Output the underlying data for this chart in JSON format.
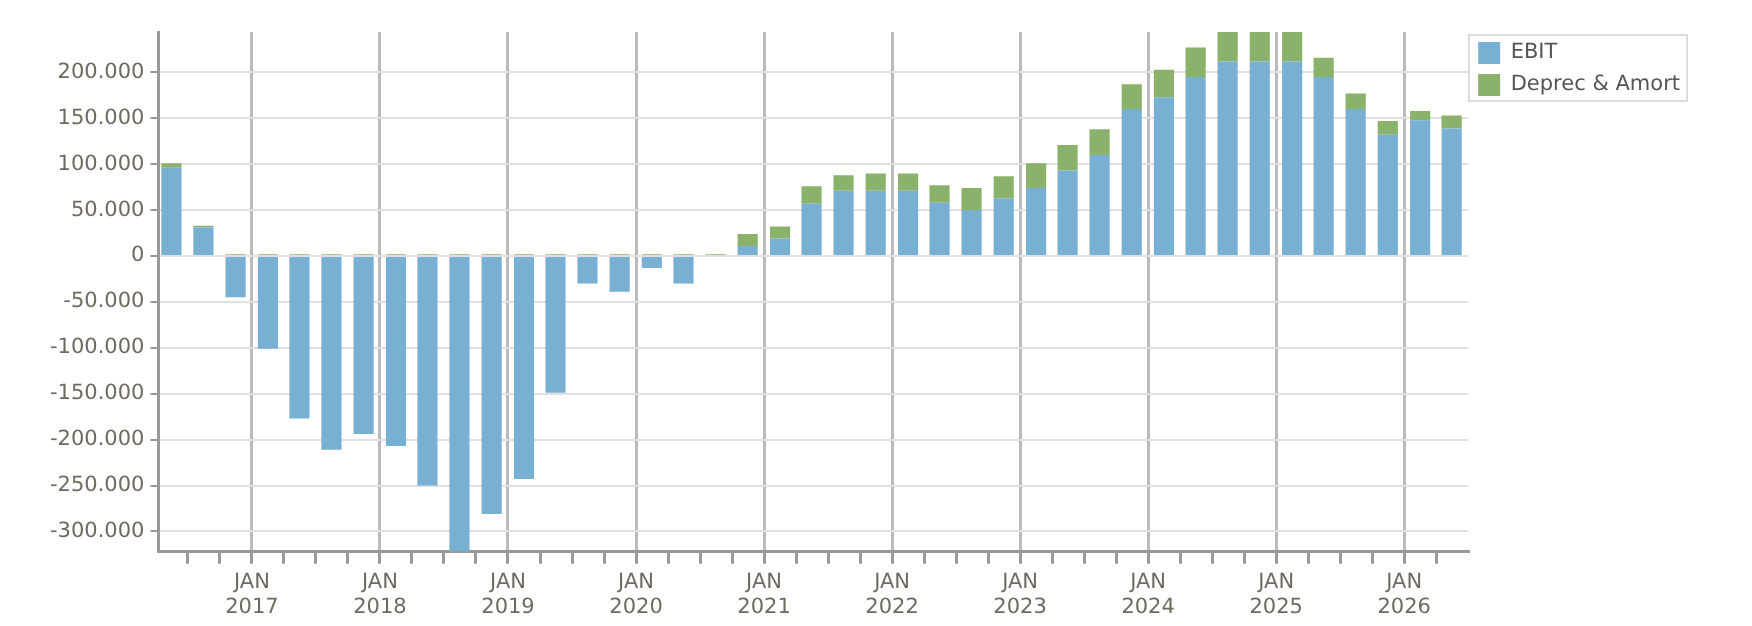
{
  "chart_data": {
    "type": "bar",
    "stacked": true,
    "grid": true,
    "legend": "top right",
    "x": [
      "2016-05-15",
      "2016-08-15",
      "2016-11-15",
      "2017-02-15",
      "2017-05-15",
      "2017-08-15",
      "2017-11-15",
      "2018-02-15",
      "2018-05-15",
      "2018-08-15",
      "2018-11-15",
      "2019-02-15",
      "2019-05-15",
      "2019-08-15",
      "2019-11-15",
      "2020-02-15",
      "2020-05-15",
      "2020-08-15",
      "2020-11-15",
      "2021-02-15",
      "2021-05-15",
      "2021-08-15",
      "2021-11-15",
      "2022-02-15",
      "2022-05-15",
      "2022-08-15",
      "2022-11-15",
      "2023-02-15",
      "2023-05-15",
      "2023-08-15",
      "2023-11-15",
      "2024-02-15",
      "2024-05-15",
      "2024-08-15",
      "2024-11-15",
      "2025-02-15",
      "2025-05-15",
      "2025-08-15",
      "2025-11-15",
      "2026-02-15",
      "2026-05-15"
    ],
    "series": [
      {
        "name": "EBIT",
        "color": "#78b0d3",
        "values": [
          96000,
          31000,
          -45000,
          -101000,
          -177000,
          -211000,
          -194000,
          -207000,
          -250000,
          -322000,
          -281000,
          -243000,
          -149000,
          -30000,
          -39000,
          -13000,
          -30000,
          null,
          11000,
          19000,
          57000,
          71000,
          71000,
          71000,
          58000,
          50000,
          63000,
          74000,
          93000,
          110000,
          160000,
          173000,
          195000,
          212000,
          212000,
          212000,
          195000,
          160000,
          132000,
          148000,
          139000
        ]
      },
      {
        "name": "Deprec & Amort",
        "color": "#8ab26a",
        "values": [
          5000,
          2000,
          2000,
          2000,
          2000,
          2000,
          2000,
          2000,
          2000,
          2000,
          2000,
          2000,
          2000,
          2000,
          2000,
          2000,
          2000,
          2000,
          13000,
          13000,
          19000,
          17000,
          19000,
          19000,
          19000,
          24000,
          24000,
          27000,
          28000,
          28000,
          27000,
          30000,
          32000,
          32000,
          32000,
          32000,
          21000,
          17000,
          15000,
          10000,
          14000
        ]
      }
    ],
    "xlim": [
      "2016-04-08",
      "2026-07-01"
    ],
    "xticks": [
      {
        "value": "2016-07-01",
        "label": null
      },
      {
        "value": "2016-10-01",
        "label": null
      },
      {
        "value": "2017-01-01",
        "label": "JAN 2017"
      },
      {
        "value": "2017-04-01",
        "label": null
      },
      {
        "value": "2017-07-01",
        "label": null
      },
      {
        "value": "2017-10-01",
        "label": null
      },
      {
        "value": "2018-01-01",
        "label": "JAN 2018"
      },
      {
        "value": "2018-04-01",
        "label": null
      },
      {
        "value": "2018-07-01",
        "label": null
      },
      {
        "value": "2018-10-01",
        "label": null
      },
      {
        "value": "2019-01-01",
        "label": "JAN 2019"
      },
      {
        "value": "2019-04-01",
        "label": null
      },
      {
        "value": "2019-07-01",
        "label": null
      },
      {
        "value": "2019-10-01",
        "label": null
      },
      {
        "value": "2020-01-01",
        "label": "JAN 2020"
      },
      {
        "value": "2020-04-01",
        "label": null
      },
      {
        "value": "2020-07-01",
        "label": null
      },
      {
        "value": "2020-10-01",
        "label": null
      },
      {
        "value": "2021-01-01",
        "label": "JAN 2021"
      },
      {
        "value": "2021-04-01",
        "label": null
      },
      {
        "value": "2021-07-01",
        "label": null
      },
      {
        "value": "2021-10-01",
        "label": null
      },
      {
        "value": "2022-01-01",
        "label": "JAN 2022"
      },
      {
        "value": "2022-04-01",
        "label": null
      },
      {
        "value": "2022-07-01",
        "label": null
      },
      {
        "value": "2022-10-01",
        "label": null
      },
      {
        "value": "2023-01-01",
        "label": "JAN 2023"
      },
      {
        "value": "2023-04-01",
        "label": null
      },
      {
        "value": "2023-07-01",
        "label": null
      },
      {
        "value": "2023-10-01",
        "label": null
      },
      {
        "value": "2024-01-01",
        "label": "JAN 2024"
      },
      {
        "value": "2024-04-01",
        "label": null
      },
      {
        "value": "2024-07-01",
        "label": null
      },
      {
        "value": "2024-10-01",
        "label": null
      },
      {
        "value": "2025-01-01",
        "label": "JAN 2025"
      },
      {
        "value": "2025-04-01",
        "label": null
      },
      {
        "value": "2025-07-01",
        "label": null
      },
      {
        "value": "2025-10-01",
        "label": null
      },
      {
        "value": "2026-01-01",
        "label": "JAN 2026"
      },
      {
        "value": "2026-04-01",
        "label": null
      }
    ],
    "ylim": [
      -322000,
      244000
    ],
    "yticks": [
      {
        "value": -300000,
        "label": "-300.000"
      },
      {
        "value": -250000,
        "label": "-250.000"
      },
      {
        "value": -200000,
        "label": "-200.000"
      },
      {
        "value": -150000,
        "label": "-150.000"
      },
      {
        "value": -100000,
        "label": "-100.000"
      },
      {
        "value": -50000,
        "label": "-50.000"
      },
      {
        "value": 0,
        "label": "0"
      },
      {
        "value": 50000,
        "label": "50.000"
      },
      {
        "value": 100000,
        "label": "100.000"
      },
      {
        "value": 150000,
        "label": "150.000"
      },
      {
        "value": 200000,
        "label": "200.000"
      }
    ]
  }
}
